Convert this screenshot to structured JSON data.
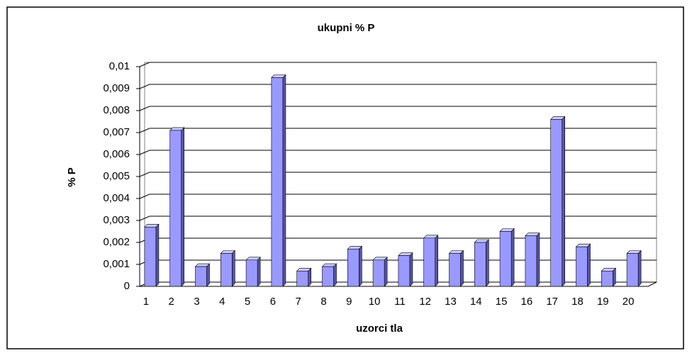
{
  "chart_data": {
    "type": "bar3d",
    "title": "ukupni % P",
    "ylabel": "% P",
    "xlabel": "uzorci tla",
    "categories": [
      "1",
      "2",
      "3",
      "4",
      "5",
      "6",
      "7",
      "8",
      "9",
      "10",
      "11",
      "12",
      "13",
      "14",
      "15",
      "16",
      "17",
      "18",
      "19",
      "20"
    ],
    "values": [
      0.0027,
      0.0071,
      0.0009,
      0.0015,
      0.0012,
      0.0095,
      0.0007,
      0.0009,
      0.0017,
      0.0012,
      0.0014,
      0.0022,
      0.0015,
      0.002,
      0.0025,
      0.0023,
      0.0076,
      0.0018,
      0.0007,
      0.0015
    ],
    "color": "#9999ff",
    "ylim": [
      0,
      0.01
    ],
    "yticks": [
      0,
      {
        "value": 0.001,
        "label": "0,001"
      },
      {
        "value": 0.002,
        "label": "0,002"
      },
      {
        "value": 0.003,
        "label": "0,003"
      },
      {
        "value": 0.004,
        "label": "0,004"
      },
      {
        "value": 0.005,
        "label": "0,005"
      },
      {
        "value": 0.006,
        "label": "0,006"
      },
      {
        "value": 0.007,
        "label": "0,007"
      },
      {
        "value": 0.008,
        "label": "0,008"
      },
      {
        "value": 0.009,
        "label": "0,009"
      },
      {
        "value": 0.01,
        "label": "0,01"
      }
    ],
    "grid": true
  }
}
